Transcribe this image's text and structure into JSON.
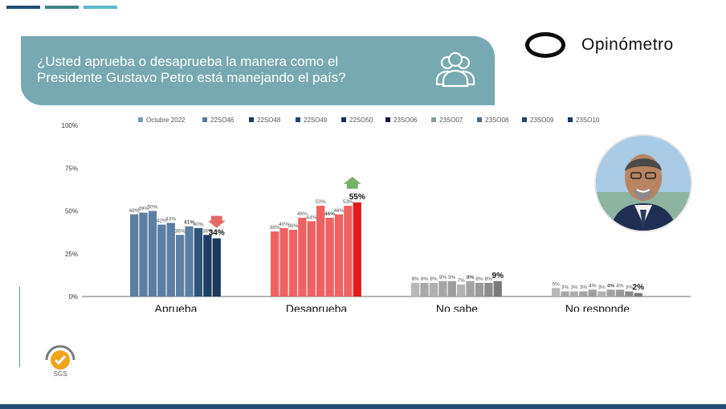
{
  "header": {
    "question": "¿Usted aprueba o desaprueba la manera como el Presidente Gustavo Petro está manejando el país?",
    "brand": "Opinómetro",
    "certification": "SGS"
  },
  "icons": {
    "people": "people-group-icon",
    "up_arrow": "up-arrow-icon",
    "down_arrow": "down-arrow-icon",
    "logo": "opinometro-ring-logo",
    "certification": "sgs-badge-icon"
  },
  "colors": {
    "banner": "#76a9b1",
    "approve_light": "#5d7fa3",
    "approve_dark": "#1d3e63",
    "disapprove": "#ef6262",
    "disapprove_last": "#e31c1c",
    "neutral": "#9b9b9b",
    "up": "#77b16a",
    "down": "#e46a6a",
    "topbar": [
      "#1f4f76",
      "#3d8688",
      "#5bb8c9"
    ]
  },
  "chart_data": {
    "type": "bar",
    "title": "¿Usted aprueba o desaprueba la manera como el Presidente Gustavo Petro está manejando el país?",
    "xlabel": "",
    "ylabel": "",
    "ylim": [
      0,
      100
    ],
    "y_ticks": [
      "0%",
      "25%",
      "50%",
      "75%",
      "100%"
    ],
    "categories": [
      "Aprueba",
      "Desaprueba",
      "No sabe",
      "No responde"
    ],
    "legend_position": "top",
    "series": [
      {
        "name": "Octubre 2022",
        "color": "#76a0b0",
        "values": [
          48,
          38,
          8,
          5
        ],
        "labels": [
          "48%",
          "38%",
          "8%",
          "5%"
        ]
      },
      {
        "name": "22SO46",
        "color": "#5a7a9a",
        "values": [
          49,
          40,
          8,
          3
        ],
        "labels": [
          "49%",
          "40%",
          "8%",
          "3%"
        ]
      },
      {
        "name": "22SO48",
        "color": "#1c3b5e",
        "values": [
          50,
          39,
          8,
          3
        ],
        "labels": [
          "50%",
          "39%",
          "8%",
          "3%"
        ]
      },
      {
        "name": "22SO49",
        "color": "#24466a",
        "values": [
          42,
          46,
          9,
          3
        ],
        "labels": [
          "42%",
          "46%",
          "9%",
          "3%"
        ]
      },
      {
        "name": "22SO50",
        "color": "#1a2f4d",
        "values": [
          43,
          44,
          9,
          4
        ],
        "labels": [
          "43%",
          "44%",
          "9%",
          "4%"
        ]
      },
      {
        "name": "23SO06",
        "color": "#1a1a3a",
        "values": [
          36,
          53,
          7,
          3
        ],
        "labels": [
          "36%",
          "53%",
          "7%",
          "3%"
        ]
      },
      {
        "name": "23SO07",
        "color": "#8a9aa4",
        "values": [
          41,
          46,
          9,
          4
        ],
        "labels": [
          "41%",
          "46%",
          "9%",
          "4%"
        ]
      },
      {
        "name": "23SO08",
        "color": "#4a6a84",
        "values": [
          40,
          48,
          8,
          4
        ],
        "labels": [
          "40%",
          "48%",
          "8%",
          "4%"
        ]
      },
      {
        "name": "23SO09",
        "color": "#2a4562",
        "values": [
          36,
          53,
          8,
          3
        ],
        "labels": [
          "36%",
          "53%",
          "8%",
          "3%"
        ]
      },
      {
        "name": "23SO10",
        "color": "#1b3a5c",
        "values": [
          34,
          55,
          9,
          2
        ],
        "labels": [
          "34%",
          "55%",
          "9%",
          "2%"
        ]
      }
    ],
    "bold_series": [
      6,
      9
    ]
  }
}
